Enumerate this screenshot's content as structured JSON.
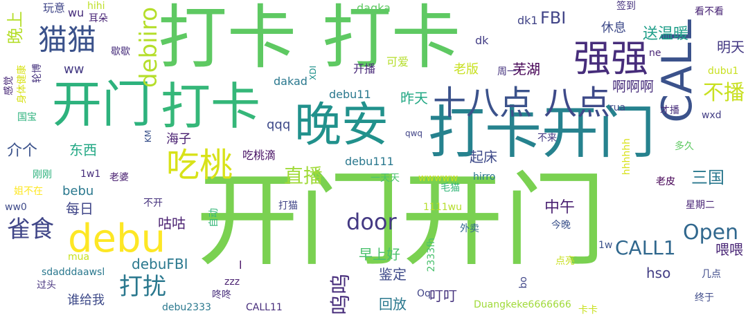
{
  "words": [
    {
      "text": "开门开门",
      "color": "#7ad151"
    },
    {
      "text": "打卡",
      "color": "#5ec962"
    },
    {
      "text": "打卡",
      "color": "#5ec962"
    },
    {
      "text": "开门",
      "color": "#2db27d"
    },
    {
      "text": "打卡",
      "color": "#35b779"
    },
    {
      "text": "打卡开门",
      "color": "#26828e"
    },
    {
      "text": "晚安",
      "color": "#21918c"
    },
    {
      "text": "十八点",
      "color": "#3b528b"
    },
    {
      "text": "八点",
      "color": "#3e4a89"
    },
    {
      "text": "CALL",
      "color": "#3b528b"
    },
    {
      "text": "强强",
      "color": "#472d7b"
    },
    {
      "text": "猫猫",
      "color": "#3b528b"
    },
    {
      "text": "吃桃",
      "color": "#d8e219"
    },
    {
      "text": "debu",
      "color": "#fde725"
    },
    {
      "text": "雀食",
      "color": "#404688"
    },
    {
      "text": "debiiro",
      "color": "#b5de2b"
    },
    {
      "text": "door",
      "color": "#443983"
    },
    {
      "text": "Open",
      "color": "#31688e"
    },
    {
      "text": "CALL1",
      "color": "#31688e"
    },
    {
      "text": "打扰",
      "color": "#2a788e"
    },
    {
      "text": "呜呜",
      "color": "#472d7b"
    },
    {
      "text": "直播",
      "color": "#a0da39"
    },
    {
      "text": "不播",
      "color": "#c8e020"
    },
    {
      "text": "晚上",
      "color": "#b5de2b"
    },
    {
      "text": "三国",
      "color": "#2a788e"
    },
    {
      "text": "起床",
      "color": "#3e4a89"
    },
    {
      "text": "中午",
      "color": "#481f70"
    },
    {
      "text": "FBI",
      "color": "#414487"
    },
    {
      "text": "送温暖",
      "color": "#1f9e89"
    },
    {
      "text": "啊啊啊",
      "color": "#472d7b"
    },
    {
      "text": "芜湖",
      "color": "#440154"
    },
    {
      "text": "昨天",
      "color": "#22a884"
    },
    {
      "text": "休息",
      "color": "#3e4a89"
    },
    {
      "text": "明天",
      "color": "#443983"
    },
    {
      "text": "喂喂",
      "color": "#482475"
    },
    {
      "text": "早上好",
      "color": "#4ac16d"
    },
    {
      "text": "鉴定",
      "color": "#3e4a89"
    },
    {
      "text": "回放",
      "color": "#2a788e"
    },
    {
      "text": "咕咕",
      "color": "#481f70"
    },
    {
      "text": "东西",
      "color": "#22a884"
    },
    {
      "text": "介个",
      "color": "#3b528b"
    },
    {
      "text": "每日",
      "color": "#404688"
    },
    {
      "text": "bebu",
      "color": "#2a788e"
    },
    {
      "text": "debuFBI",
      "color": "#2a788e"
    },
    {
      "text": "谁给我",
      "color": "#3e4a89"
    },
    {
      "text": "hso",
      "color": "#433e85"
    },
    {
      "text": "老版",
      "color": "#c8e020"
    },
    {
      "text": "叮叮",
      "color": "#46337e"
    },
    {
      "text": "qqq",
      "color": "#3e4a89"
    },
    {
      "text": "ww",
      "color": "#443983"
    },
    {
      "text": "海子",
      "color": "#481f70"
    },
    {
      "text": "吃桃滴",
      "color": "#471164"
    },
    {
      "text": "debu111",
      "color": "#2a788e"
    },
    {
      "text": "debu11",
      "color": "#2a788e"
    },
    {
      "text": "dakad",
      "color": "#2a788e"
    },
    {
      "text": "开播",
      "color": "#482878"
    },
    {
      "text": "可爱",
      "color": "#b5de2b"
    },
    {
      "text": "daqka",
      "color": "#5ec962"
    },
    {
      "text": "玩意",
      "color": "#404688"
    },
    {
      "text": "wu",
      "color": "#472d7b"
    },
    {
      "text": "耳朵",
      "color": "#482475"
    },
    {
      "text": "hihi",
      "color": "#bddf26"
    },
    {
      "text": "dk",
      "color": "#433e85"
    },
    {
      "text": "dk1",
      "color": "#414487"
    },
    {
      "text": "签到",
      "color": "#46337e"
    },
    {
      "text": "看不看",
      "color": "#482475"
    },
    {
      "text": "周一",
      "color": "#46337e"
    },
    {
      "text": "ne",
      "color": "#482475"
    },
    {
      "text": "dubu1",
      "color": "#c8e020"
    },
    {
      "text": "rua",
      "color": "#3e4a89"
    },
    {
      "text": "才播",
      "color": "#472d7b"
    },
    {
      "text": "wxd",
      "color": "#433e85"
    },
    {
      "text": "歇歇",
      "color": "#472d7b"
    },
    {
      "text": "轮博",
      "color": "#46337e"
    },
    {
      "text": "身体健康",
      "color": "#d8e219"
    },
    {
      "text": "感觉",
      "color": "#482878"
    },
    {
      "text": "国宝",
      "color": "#2db27d"
    },
    {
      "text": "XDI",
      "color": "#21918c"
    },
    {
      "text": "KM",
      "color": "#3b528b"
    },
    {
      "text": "qwq",
      "color": "#414487"
    },
    {
      "text": "不来",
      "color": "#443983"
    },
    {
      "text": "多久",
      "color": "#5ec962"
    },
    {
      "text": "hhhhhh",
      "color": "#d8e219"
    },
    {
      "text": "老皮",
      "color": "#440154"
    },
    {
      "text": "刚刚",
      "color": "#2db27d"
    },
    {
      "text": "1w1",
      "color": "#472d7b"
    },
    {
      "text": "老婆",
      "color": "#481f70"
    },
    {
      "text": "姐不在",
      "color": "#fde725"
    },
    {
      "text": "ww0",
      "color": "#3e4a89"
    },
    {
      "text": "不开",
      "color": "#46337e"
    },
    {
      "text": "自动",
      "color": "#35b779"
    },
    {
      "text": "打猫",
      "color": "#414487"
    },
    {
      "text": "1111wu",
      "color": "#b5de2b"
    },
    {
      "text": "一天天",
      "color": "#4ac16d"
    },
    {
      "text": "wwwww",
      "color": "#c8e020"
    },
    {
      "text": "毛猫",
      "color": "#35b779"
    },
    {
      "text": "hirro",
      "color": "#2a788e"
    },
    {
      "text": "星期二",
      "color": "#482475"
    },
    {
      "text": "外卖",
      "color": "#31688e"
    },
    {
      "text": "今晚",
      "color": "#3b528b"
    },
    {
      "text": "1w",
      "color": "#3b528b"
    },
    {
      "text": "2333fh",
      "color": "#4ac16d"
    },
    {
      "text": "点亮",
      "color": "#c8e020"
    },
    {
      "text": "几点",
      "color": "#3e4a89"
    },
    {
      "text": "sdadddaawsl",
      "color": "#2a788e"
    },
    {
      "text": "mua",
      "color": "#c8e020"
    },
    {
      "text": "过头",
      "color": "#46337e"
    },
    {
      "text": "debu2333",
      "color": "#2a788e"
    },
    {
      "text": "zzz",
      "color": "#481f70"
    },
    {
      "text": "咚咚",
      "color": "#472d7b"
    },
    {
      "text": "CALL11",
      "color": "#472d7b"
    },
    {
      "text": "bo",
      "color": "#404688"
    },
    {
      "text": "Oq",
      "color": "#414487"
    },
    {
      "text": "Duangkeke6666666",
      "color": "#a0da39"
    },
    {
      "text": "卡卡",
      "color": "#c8e020"
    },
    {
      "text": "终于",
      "color": "#3e4a89"
    },
    {
      "text": "l",
      "color": "#471164"
    }
  ]
}
